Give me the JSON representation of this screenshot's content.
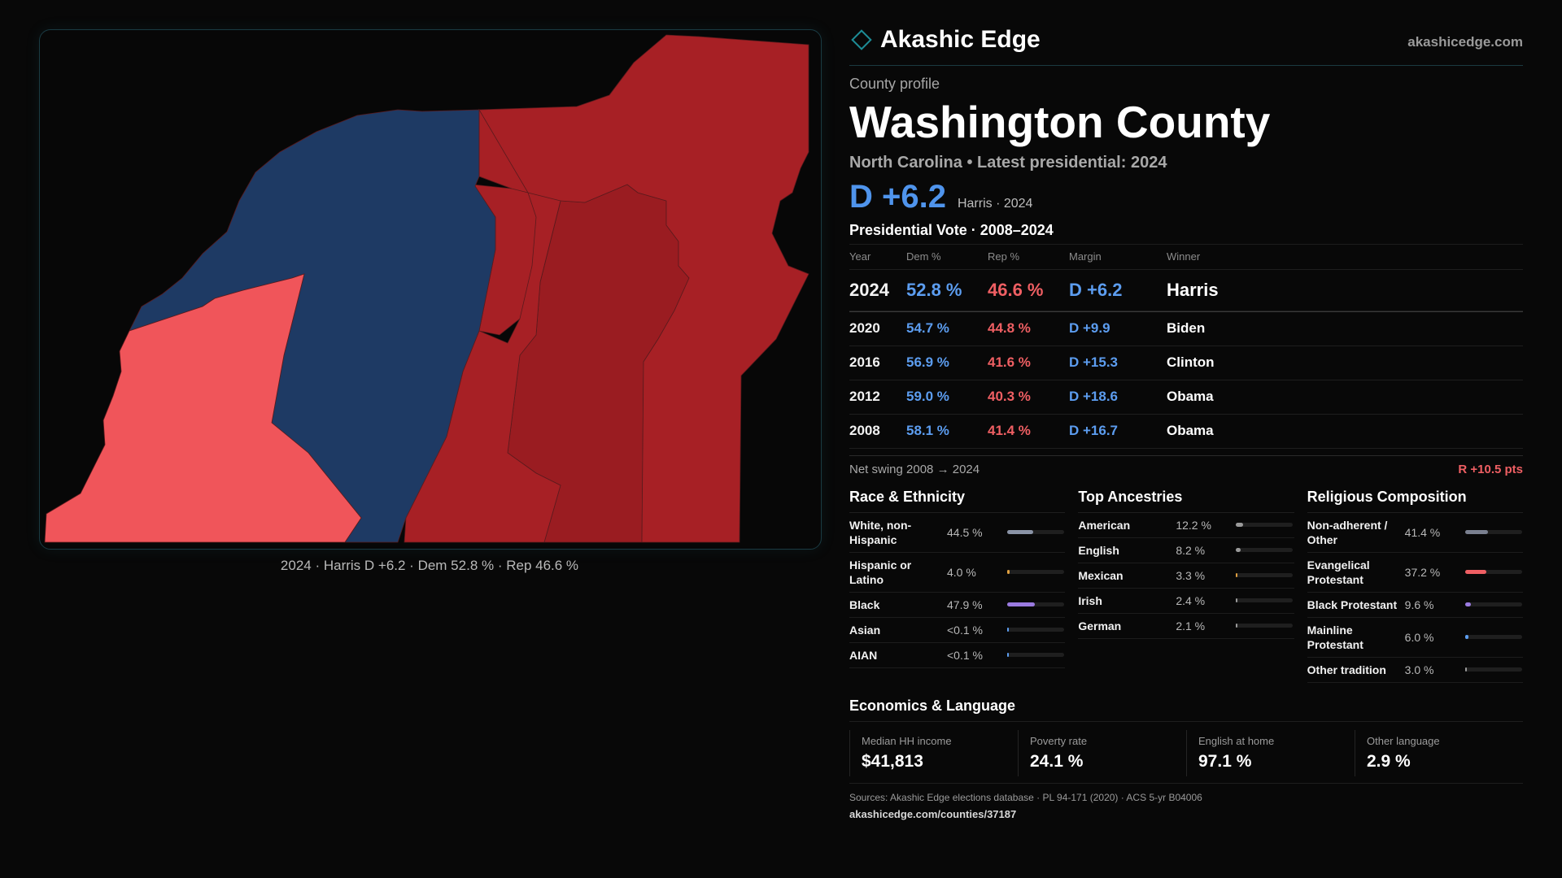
{
  "brand": {
    "name": "Akashic Edge",
    "url": "akashicedge.com",
    "logo_icon": "diamond-outline-icon"
  },
  "county": {
    "kicker": "County profile",
    "name": "Washington County",
    "subtitle": "North Carolina • Latest presidential: 2024",
    "headline_margin": "D +6.2",
    "headline_note": "Harris · 2024"
  },
  "map": {
    "caption": "2024 · Harris D +6.2 · Dem 52.8 % · Rep 46.6 %",
    "colors": {
      "dem": "#1e3a64",
      "rep": "#a72025",
      "rep_dark": "#9a1c21",
      "rep_light": "#f0555a"
    }
  },
  "presidential": {
    "title": "Presidential Vote · 2008–2024",
    "headers": {
      "year": "Year",
      "dem": "Dem %",
      "rep": "Rep %",
      "margin": "Margin",
      "winner": "Winner"
    },
    "rows": [
      {
        "year": "2024",
        "dem": "52.8 %",
        "rep": "46.6 %",
        "margin": "D +6.2",
        "winner": "Harris"
      },
      {
        "year": "2020",
        "dem": "54.7 %",
        "rep": "44.8 %",
        "margin": "D +9.9",
        "winner": "Biden"
      },
      {
        "year": "2016",
        "dem": "56.9 %",
        "rep": "41.6 %",
        "margin": "D +15.3",
        "winner": "Clinton"
      },
      {
        "year": "2012",
        "dem": "59.0 %",
        "rep": "40.3 %",
        "margin": "D +18.6",
        "winner": "Obama"
      },
      {
        "year": "2008",
        "dem": "58.1 %",
        "rep": "41.4 %",
        "margin": "D +16.7",
        "winner": "Obama"
      }
    ],
    "swing_label": "Net swing 2008 → 2024",
    "swing_value": "R +10.5 pts"
  },
  "race": {
    "title": "Race & Ethnicity",
    "items": [
      {
        "label": "White, non-Hispanic",
        "value": "44.5 %",
        "share": 0.445,
        "color": "#8a93a6"
      },
      {
        "label": "Hispanic or Latino",
        "value": "4.0 %",
        "share": 0.04,
        "color": "#e0a040"
      },
      {
        "label": "Black",
        "value": "47.9 %",
        "share": 0.479,
        "color": "#9a7ae0"
      },
      {
        "label": "Asian",
        "value": "<0.1 %",
        "share": 0.0,
        "color": "#5c9df0"
      },
      {
        "label": "AIAN",
        "value": "<0.1 %",
        "share": 0.0,
        "color": "#5c9df0"
      }
    ]
  },
  "ancestry": {
    "title": "Top Ancestries",
    "items": [
      {
        "label": "American",
        "value": "12.2 %",
        "share": 0.122,
        "color": "#9a9a9a"
      },
      {
        "label": "English",
        "value": "8.2 %",
        "share": 0.082,
        "color": "#9a9a9a"
      },
      {
        "label": "Mexican",
        "value": "3.3 %",
        "share": 0.033,
        "color": "#e0a040"
      },
      {
        "label": "Irish",
        "value": "2.4 %",
        "share": 0.024,
        "color": "#9a9a9a"
      },
      {
        "label": "German",
        "value": "2.1 %",
        "share": 0.021,
        "color": "#9a9a9a"
      }
    ]
  },
  "religion": {
    "title": "Religious Composition",
    "items": [
      {
        "label": "Non-adherent / Other",
        "value": "41.4 %",
        "share": 0.414,
        "color": "#7a8090"
      },
      {
        "label": "Evangelical Protestant",
        "value": "37.2 %",
        "share": 0.372,
        "color": "#ef5f63"
      },
      {
        "label": "Black Protestant",
        "value": "9.6 %",
        "share": 0.096,
        "color": "#9a7ae0"
      },
      {
        "label": "Mainline Protestant",
        "value": "6.0 %",
        "share": 0.06,
        "color": "#5c9df0"
      },
      {
        "label": "Other tradition",
        "value": "3.0 %",
        "share": 0.03,
        "color": "#9a9a9a"
      }
    ]
  },
  "economics": {
    "title": "Economics & Language",
    "cards": [
      {
        "label": "Median HH income",
        "value": "$41,813"
      },
      {
        "label": "Poverty rate",
        "value": "24.1 %"
      },
      {
        "label": "English at home",
        "value": "97.1 %"
      },
      {
        "label": "Other language",
        "value": "2.9 %"
      }
    ]
  },
  "footer": {
    "sources": "Sources: Akashic Edge elections database · PL 94-171 (2020) · ACS 5-yr B04006",
    "url": "akashicedge.com/counties/37187"
  }
}
